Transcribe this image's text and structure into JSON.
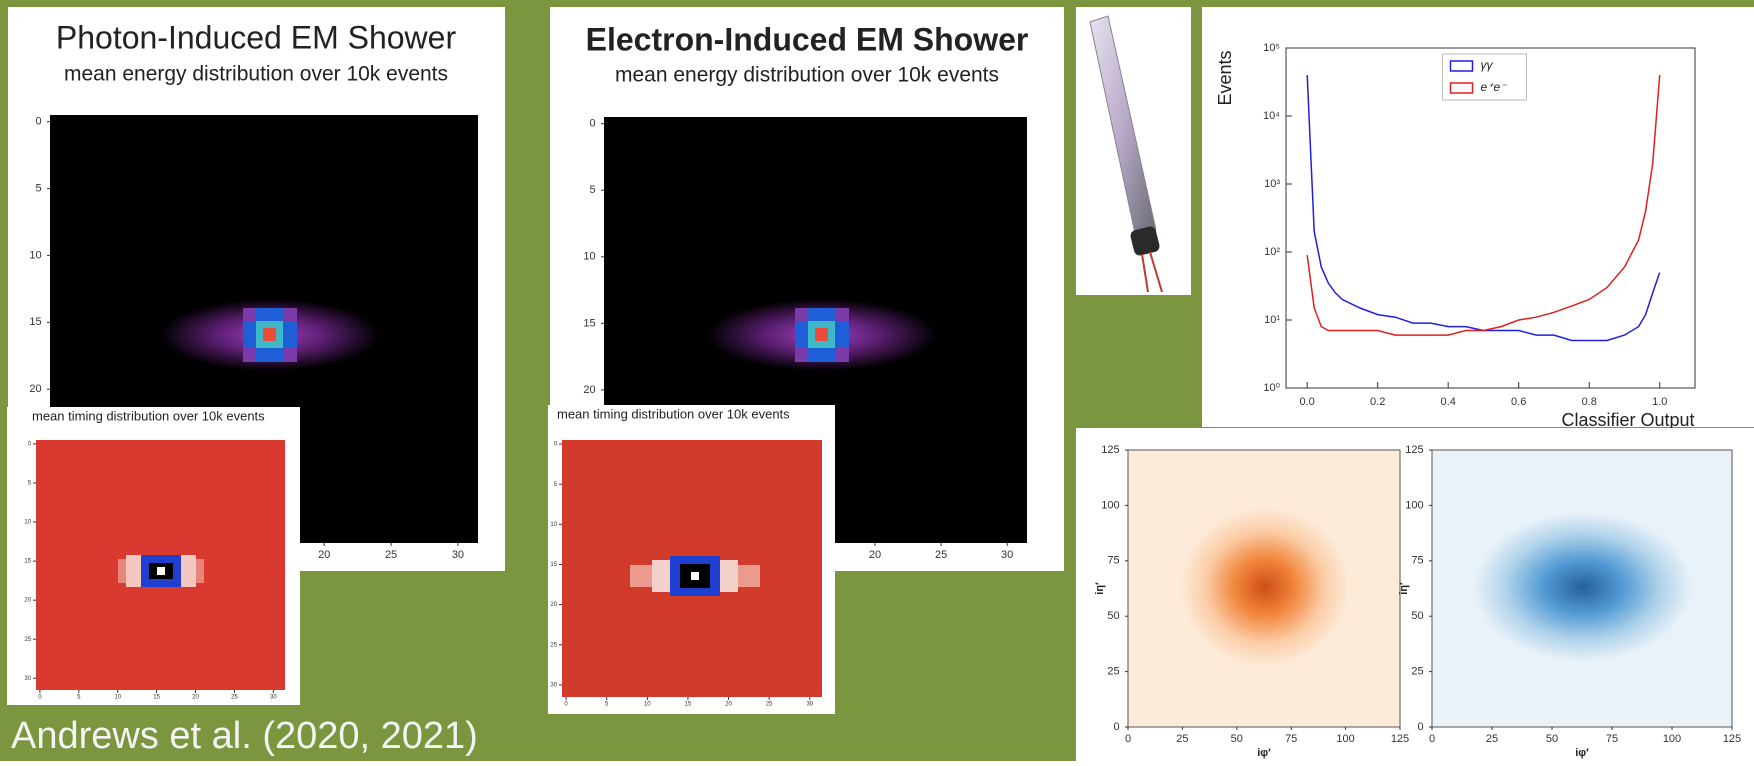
{
  "panels": [
    {
      "title": "Photon-Induced EM Shower",
      "subtitle": "mean energy distribution over 10k events",
      "energy_map": {
        "xlim": [
          -0.5,
          31.5
        ],
        "ylim": [
          31.5,
          -0.5
        ],
        "xticks": [
          20,
          25,
          30
        ],
        "yticks": [
          0,
          5,
          10,
          15,
          20
        ]
      },
      "timing_map": {
        "title": "mean timing distribution over 10k events",
        "xlim": [
          -0.5,
          31.5
        ],
        "ylim": [
          31.5,
          -0.5
        ],
        "xticks": [
          0,
          5,
          10,
          15,
          20,
          25,
          30
        ],
        "yticks": [
          0,
          5,
          10,
          15,
          20,
          25,
          30
        ]
      }
    },
    {
      "title": "Electron-Induced EM Shower",
      "subtitle": "mean energy distribution over 10k events",
      "energy_map": {
        "xlim": [
          -0.5,
          31.5
        ],
        "ylim": [
          31.5,
          -0.5
        ],
        "xticks": [
          20,
          25,
          30
        ],
        "yticks": [
          0,
          5,
          10,
          15,
          20
        ]
      },
      "timing_map": {
        "title": "mean timing distribution over 10k events",
        "xlim": [
          -0.5,
          31.5
        ],
        "ylim": [
          31.5,
          -0.5
        ],
        "xticks": [
          0,
          5,
          10,
          15,
          20,
          25,
          30
        ],
        "yticks": [
          0,
          5,
          10,
          15,
          20,
          25,
          30
        ]
      }
    }
  ],
  "chart_data": {
    "type": "line",
    "ylabel": "Events",
    "xlabel": "Classifier Output",
    "log_y": true,
    "legend": "upper center",
    "x": [
      0,
      0.02,
      0.04,
      0.06,
      0.08,
      0.1,
      0.15,
      0.2,
      0.25,
      0.3,
      0.35,
      0.4,
      0.45,
      0.5,
      0.55,
      0.6,
      0.65,
      0.7,
      0.75,
      0.8,
      0.85,
      0.9,
      0.94,
      0.96,
      0.98,
      1.0
    ],
    "series": [
      {
        "name": "γγ",
        "color": "#1f1fe0",
        "values": [
          40000,
          200,
          60,
          35,
          25,
          20,
          15,
          12,
          11,
          9,
          9,
          8,
          8,
          7,
          7,
          7,
          6,
          6,
          5,
          5,
          5,
          6,
          8,
          12,
          25,
          50
        ]
      },
      {
        "name": "e⁺e⁻",
        "color": "#e01f1f",
        "values": [
          90,
          15,
          8,
          7,
          7,
          7,
          7,
          7,
          6,
          6,
          6,
          6,
          7,
          7,
          8,
          10,
          11,
          13,
          16,
          20,
          30,
          60,
          150,
          400,
          2000,
          40000
        ]
      }
    ],
    "xlim": [
      -0.06,
      1.1
    ],
    "ylim": [
      1,
      100000
    ],
    "xticks": [
      {
        "value": 0,
        "label": "0.0"
      },
      0.2,
      0.4,
      0.6,
      0.8,
      {
        "value": 1,
        "label": "1.0"
      }
    ],
    "yticks": [
      {
        "value": 1,
        "label": "10⁰"
      },
      {
        "value": 10,
        "label": "10¹"
      },
      {
        "value": 100,
        "label": "10²"
      },
      {
        "value": 1000,
        "label": "10³"
      },
      {
        "value": 10000,
        "label": "10⁴"
      },
      {
        "value": 100000,
        "label": "10⁵"
      }
    ]
  },
  "occupancy_maps": [
    {
      "xlabel": "iφ′",
      "ylabel": "iη′",
      "xlim": [
        0,
        125
      ],
      "ylim": [
        0,
        125
      ],
      "xticks": [
        0,
        25,
        50,
        75,
        100,
        125
      ],
      "yticks": [
        0,
        25,
        50,
        75,
        100,
        125
      ],
      "color": "#e8590c"
    },
    {
      "xlabel": "iφ′",
      "ylabel": "iη′",
      "xlim": [
        0,
        125
      ],
      "ylim": [
        0,
        125
      ],
      "xticks": [
        0,
        25,
        50,
        75,
        100,
        125
      ],
      "yticks": [
        0,
        25,
        50,
        75,
        100,
        125
      ],
      "color": "#1f6fb4"
    }
  ],
  "citation": "Andrews et al. (2020, 2021)"
}
